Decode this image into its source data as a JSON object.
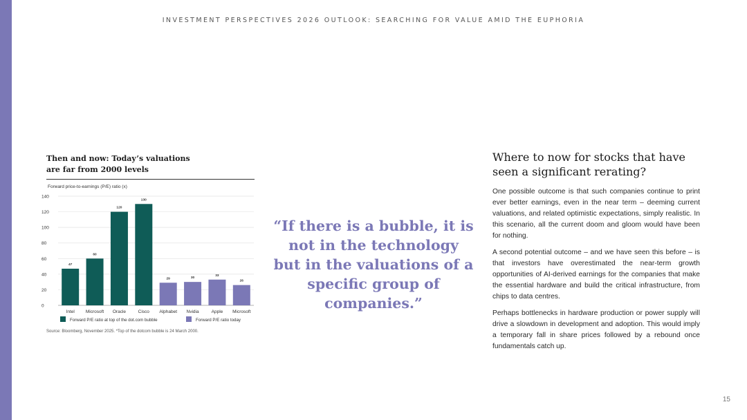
{
  "header": "INVESTMENT PERSPECTIVES 2026 OUTLOOK: SEARCHING FOR VALUE AMID THE EUPHORIA",
  "page_number": "15",
  "colors": {
    "accent": "#7b78b6",
    "dark_teal": "#0f5c57",
    "purple": "#7b78b6"
  },
  "chart": {
    "title_line1": "Then and now: Today’s valuations",
    "title_line2": "are far from 2000 levels",
    "source": "Source: Bloomberg, November 2025. *Top of the dotcom bubble is 24 March 2000."
  },
  "chart_data": {
    "type": "bar",
    "ylabel": "Forward price-to-earnings (P/E) ratio (x)",
    "ylim": [
      0,
      140
    ],
    "yticks": [
      0,
      20,
      40,
      60,
      80,
      100,
      120,
      140
    ],
    "grid": true,
    "legend_position": "bottom",
    "categories": [
      "Intel",
      "Microsoft",
      "Oracle",
      "Cisco",
      "Alphabet",
      "Nvidia",
      "Apple",
      "Microsoft"
    ],
    "values": [
      47,
      60,
      120,
      130,
      29,
      30,
      33,
      26
    ],
    "value_labels": [
      "47",
      "60",
      "120",
      "130",
      "29",
      "30",
      "33",
      "26"
    ],
    "bar_series": [
      0,
      0,
      0,
      0,
      1,
      1,
      1,
      1
    ],
    "series": [
      {
        "name": "Forward P/E ratio at top of the dot.com bubble",
        "color": "#0f5c57"
      },
      {
        "name": "Forward P/E ratio today",
        "color": "#7b78b6"
      }
    ]
  },
  "quote": "“If there is a bubble, it is not in the technology but in the valuations of a specific group of companies.”",
  "article": {
    "title": "Where to now for stocks that have seen a significant rerating?",
    "paragraphs": [
      "One possible outcome is that such companies continue to print ever better earnings, even in the near term – deeming current valuations, and related optimistic expectations, simply realistic. In this scenario, all the current doom and gloom would have been for nothing.",
      "A second potential outcome – and we have seen this before – is that investors have overestimated the near-term growth opportunities of AI-derived earnings for the companies that make the essential hardware and build the critical infrastructure, from chips to data centres.",
      "Perhaps bottlenecks in hardware production or power supply will drive a slowdown in development and adoption. This would imply a temporary fall in share prices followed by a rebound once fundamentals catch up."
    ]
  }
}
